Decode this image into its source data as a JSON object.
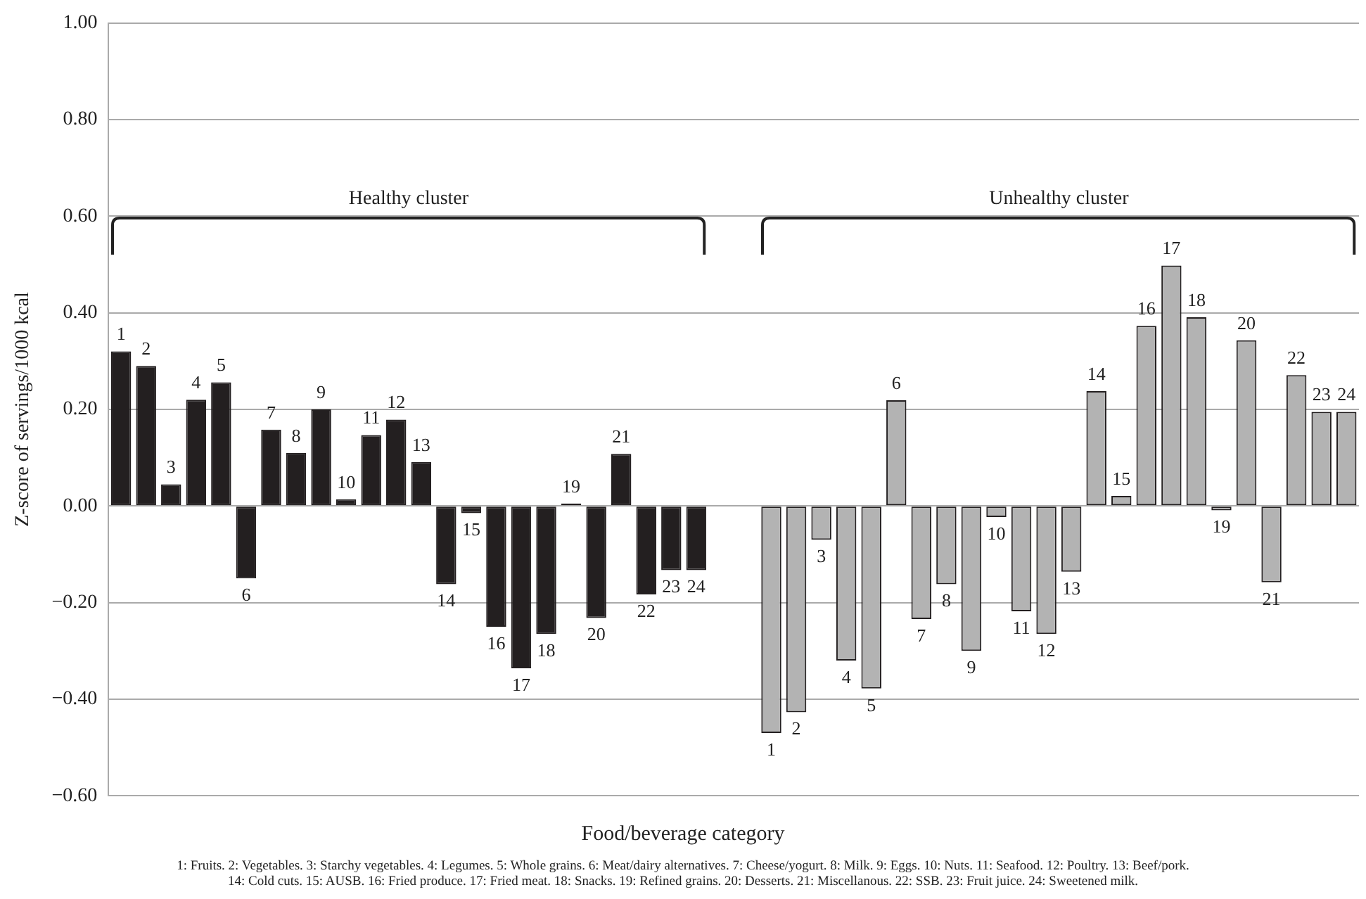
{
  "chart_data": {
    "type": "bar",
    "ylabel": "Z-score of servings/1000 kcal",
    "xlabel": "Food/beverage category",
    "categories": [
      "1",
      "2",
      "3",
      "4",
      "5",
      "6",
      "7",
      "8",
      "9",
      "10",
      "11",
      "12",
      "13",
      "14",
      "15",
      "16",
      "17",
      "18",
      "19",
      "20",
      "21",
      "22",
      "23",
      "24",
      null,
      null,
      "1",
      "2",
      "3",
      "4",
      "5",
      "6",
      "7",
      "8",
      "9",
      "10",
      "11",
      "12",
      "13",
      "14",
      "15",
      "16",
      "17",
      "18",
      "19",
      "20",
      "21",
      "22",
      "23",
      "24"
    ],
    "values": [
      0.32,
      0.29,
      0.045,
      0.22,
      0.256,
      -0.15,
      0.158,
      0.11,
      0.2,
      0.014,
      0.147,
      0.179,
      0.091,
      -0.162,
      -0.015,
      -0.25,
      -0.336,
      -0.265,
      0.005,
      -0.232,
      0.108,
      -0.183,
      -0.133,
      -0.133,
      null,
      null,
      -0.47,
      -0.427,
      -0.07,
      -0.32,
      -0.378,
      0.219,
      -0.234,
      -0.162,
      -0.3,
      -0.023,
      -0.218,
      -0.265,
      -0.136,
      0.238,
      0.021,
      0.373,
      0.498,
      0.391,
      -0.009,
      0.343,
      -0.158,
      0.271,
      0.195,
      0.195
    ],
    "colors": [
      "#231f20",
      "#231f20",
      "#231f20",
      "#231f20",
      "#231f20",
      "#231f20",
      "#231f20",
      "#231f20",
      "#231f20",
      "#231f20",
      "#231f20",
      "#231f20",
      "#231f20",
      "#231f20",
      "#231f20",
      "#231f20",
      "#231f20",
      "#231f20",
      "#231f20",
      "#231f20",
      "#231f20",
      "#231f20",
      "#231f20",
      "#231f20",
      null,
      null,
      "#b3b3b3",
      "#b3b3b3",
      "#b3b3b3",
      "#b3b3b3",
      "#b3b3b3",
      "#b3b3b3",
      "#b3b3b3",
      "#b3b3b3",
      "#b3b3b3",
      "#b3b3b3",
      "#b3b3b3",
      "#b3b3b3",
      "#b3b3b3",
      "#b3b3b3",
      "#b3b3b3",
      "#b3b3b3",
      "#b3b3b3",
      "#b3b3b3",
      "#b3b3b3",
      "#b3b3b3",
      "#b3b3b3",
      "#b3b3b3",
      "#b3b3b3",
      "#b3b3b3"
    ],
    "ylim": [
      -0.6,
      1.0
    ],
    "yticks": [
      {
        "value": -0.6,
        "label": "−0.60"
      },
      {
        "value": -0.4,
        "label": "−0.40"
      },
      {
        "value": -0.2,
        "label": "−0.20"
      },
      {
        "value": 0,
        "label": "0.00"
      },
      {
        "value": 0.2,
        "label": "0.20"
      },
      {
        "value": 0.4,
        "label": "0.40"
      },
      {
        "value": 0.6,
        "label": "0.60"
      },
      {
        "value": 0.8,
        "label": "0.80"
      },
      {
        "value": 1.0,
        "label": "1.00"
      }
    ],
    "grid": "y",
    "legend": false,
    "tick_labels": "y",
    "annotations": [
      "Healthy cluster",
      "Unhealthy cluster",
      "1: Fruits. 2: Vegetables. 3: Starchy vegetables. 4: Legumes. 5: Whole grains. 6: Meat/dairy alternatives. 7: Cheese/yogurt. 8: Milk. 9: Eggs. 10: Nuts. 11: Seafood. 12: Poultry. 13: Beef/pork.",
      "14: Cold cuts. 15: AUSB. 16: Fried produce. 17: Fried meat. 18: Snacks. 19: Refined grains. 20: Desserts. 21: Miscellanous. 22: SSB. 23: Fruit juice. 24: Sweetened milk."
    ]
  }
}
